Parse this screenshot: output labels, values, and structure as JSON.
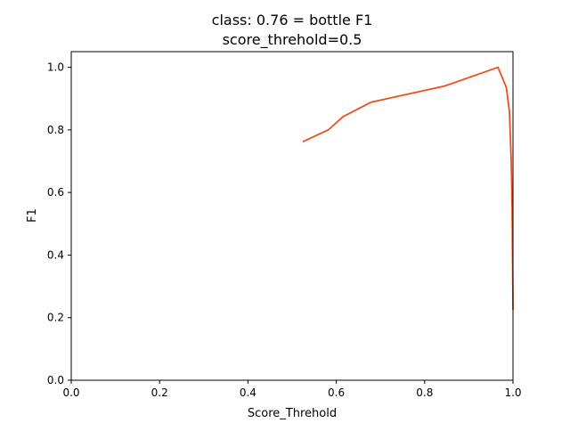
{
  "chart_data": {
    "type": "line",
    "title_line1": "class: 0.76 = bottle F1",
    "title_line2": "score_threhold=0.5",
    "xlabel": "Score_Threhold",
    "ylabel": "F1",
    "xlim": [
      0,
      1
    ],
    "ylim": [
      0,
      1.05
    ],
    "xticks": [
      "0.0",
      "0.2",
      "0.4",
      "0.6",
      "0.8",
      "1.0"
    ],
    "yticks": [
      "0.0",
      "0.2",
      "0.4",
      "0.6",
      "0.8",
      "1.0"
    ],
    "grid": false,
    "series": [
      {
        "color": "#f04e1a",
        "x": [
          0.524,
          0.582,
          0.615,
          0.678,
          0.845,
          0.966,
          0.985,
          0.992,
          0.996,
          0.998,
          1.0
        ],
        "y": [
          0.762,
          0.8,
          0.842,
          0.888,
          0.94,
          1.0,
          0.935,
          0.858,
          0.7,
          0.55,
          0.225
        ]
      }
    ]
  }
}
